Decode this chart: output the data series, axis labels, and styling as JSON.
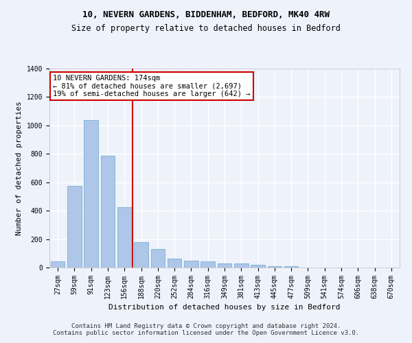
{
  "title1": "10, NEVERN GARDENS, BIDDENHAM, BEDFORD, MK40 4RW",
  "title2": "Size of property relative to detached houses in Bedford",
  "xlabel": "Distribution of detached houses by size in Bedford",
  "ylabel": "Number of detached properties",
  "categories": [
    "27sqm",
    "59sqm",
    "91sqm",
    "123sqm",
    "156sqm",
    "188sqm",
    "220sqm",
    "252sqm",
    "284sqm",
    "316sqm",
    "349sqm",
    "381sqm",
    "413sqm",
    "445sqm",
    "477sqm",
    "509sqm",
    "541sqm",
    "574sqm",
    "606sqm",
    "638sqm",
    "670sqm"
  ],
  "values": [
    45,
    575,
    1040,
    785,
    425,
    180,
    130,
    65,
    50,
    45,
    30,
    27,
    20,
    12,
    10,
    0,
    0,
    0,
    0,
    0,
    0
  ],
  "bar_color": "#aec6e8",
  "bar_edge_color": "#7aafd4",
  "vline_x": 4.5,
  "vline_color": "#cc0000",
  "annotation_text": "10 NEVERN GARDENS: 174sqm\n← 81% of detached houses are smaller (2,697)\n19% of semi-detached houses are larger (642) →",
  "annotation_box_color": "#ffffff",
  "annotation_edge_color": "#cc0000",
  "ylim": [
    0,
    1400
  ],
  "yticks": [
    0,
    200,
    400,
    600,
    800,
    1000,
    1200,
    1400
  ],
  "footnote": "Contains HM Land Registry data © Crown copyright and database right 2024.\nContains public sector information licensed under the Open Government Licence v3.0.",
  "bg_color": "#eef2fb",
  "grid_color": "#ffffff",
  "title1_fontsize": 9,
  "title2_fontsize": 8.5,
  "axis_label_fontsize": 8,
  "tick_fontsize": 7,
  "annotation_fontsize": 7.5,
  "footnote_fontsize": 6.5
}
